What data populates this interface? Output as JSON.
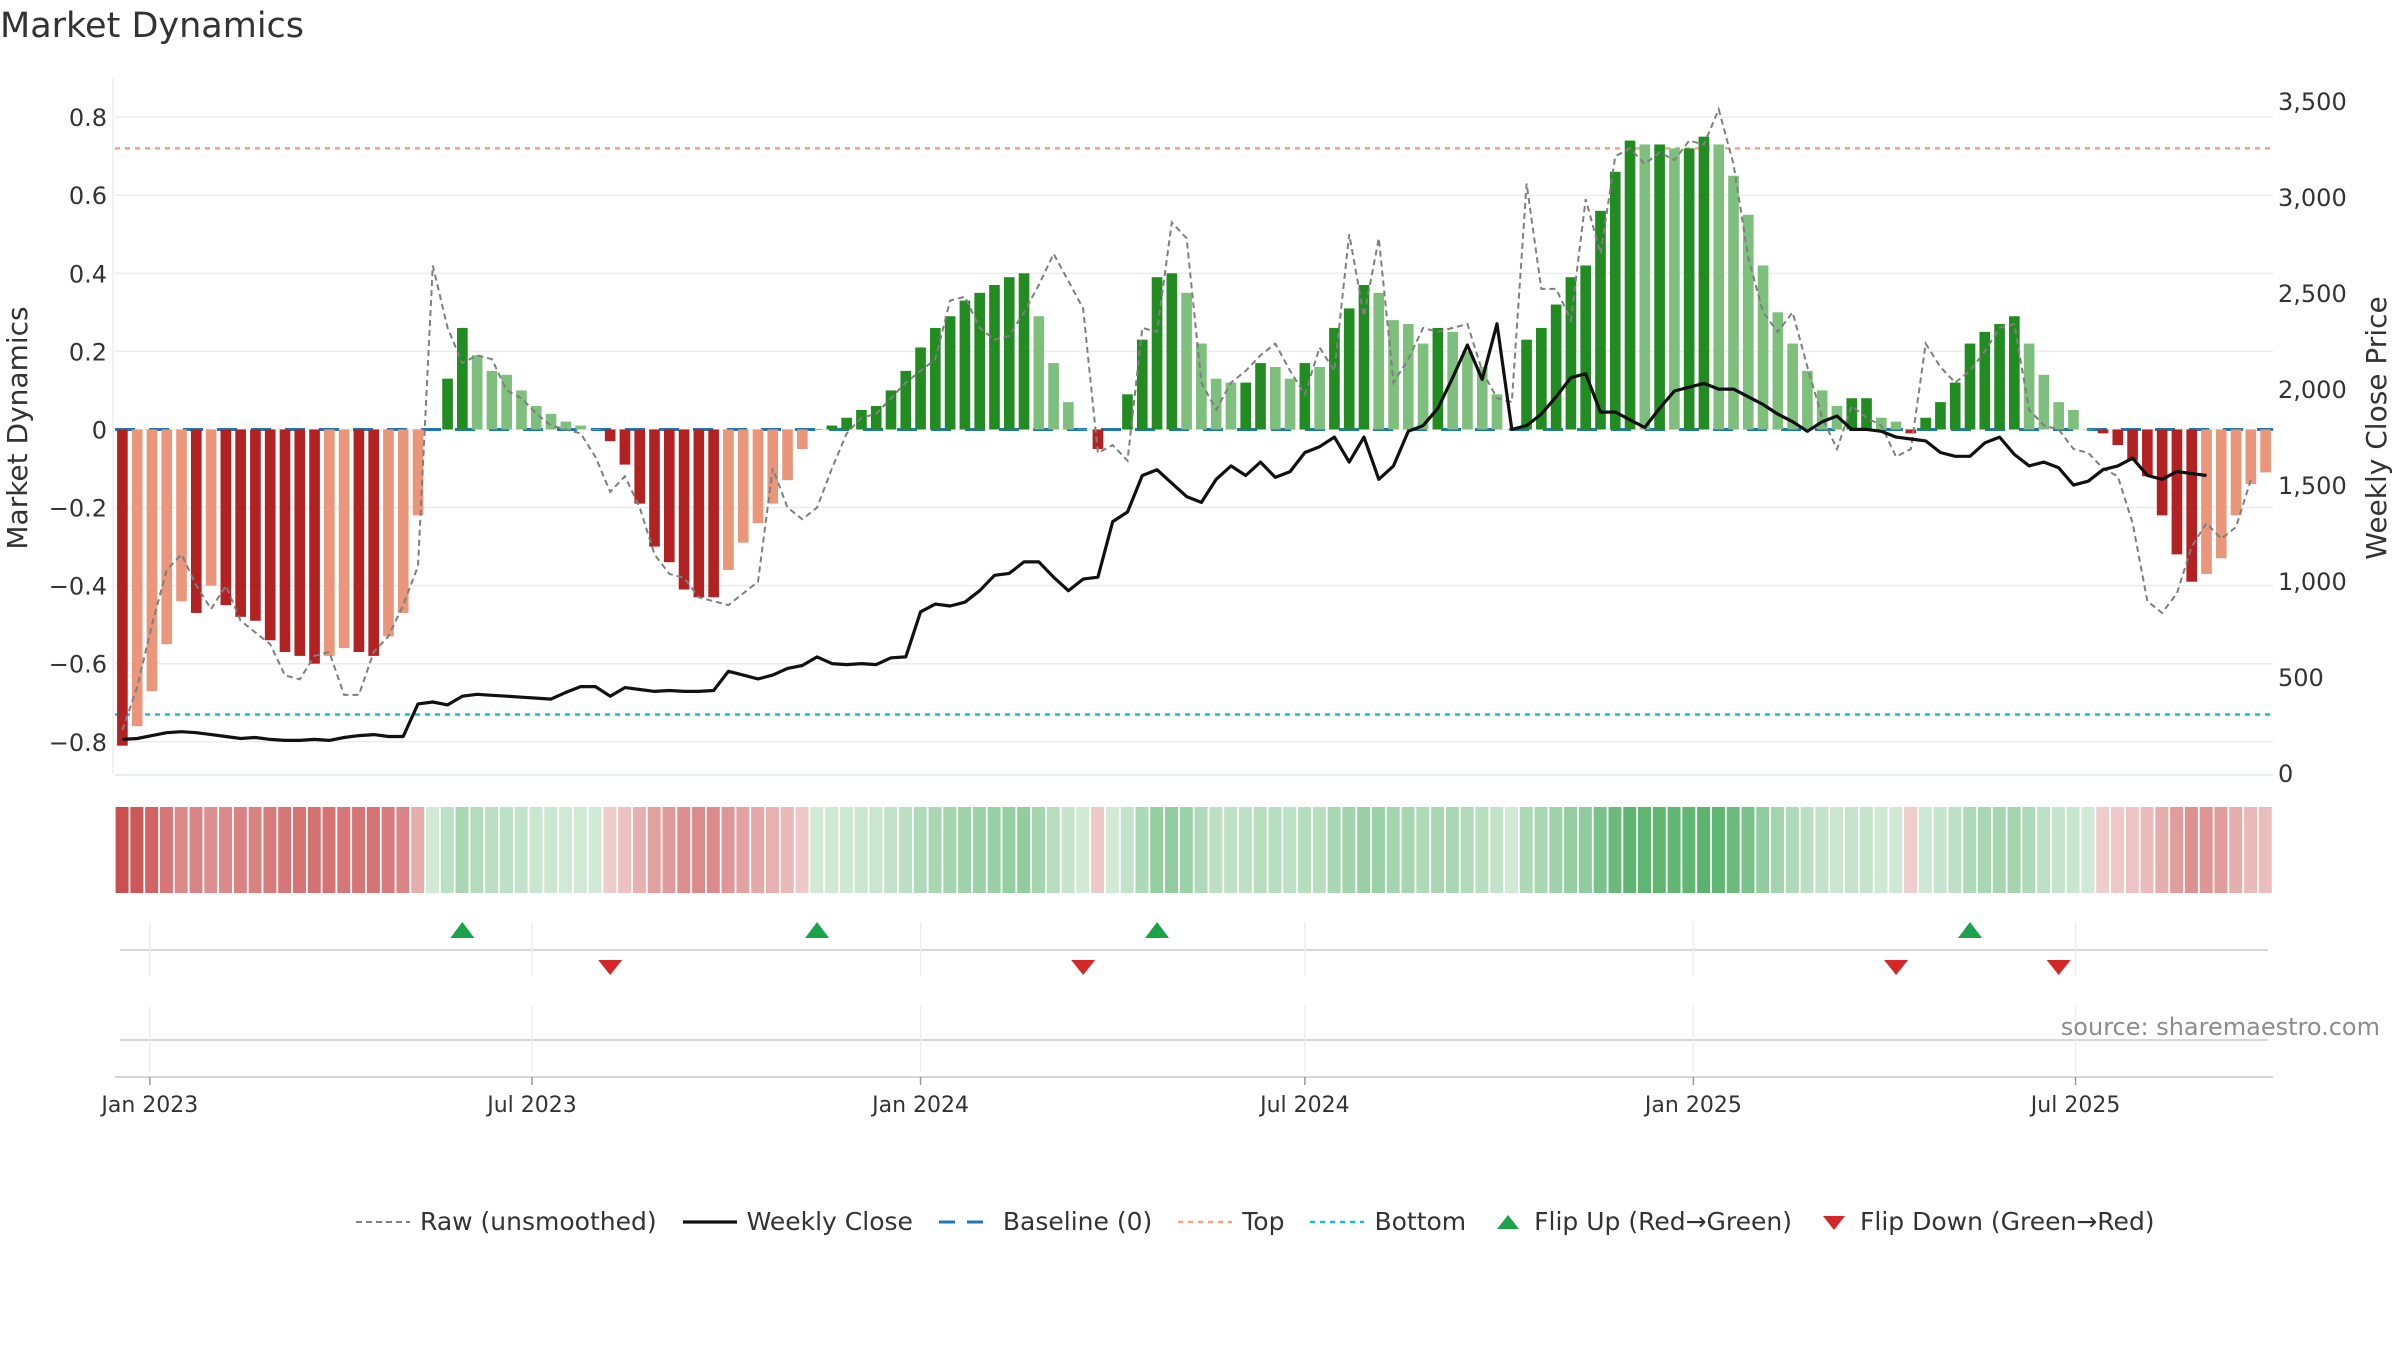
{
  "title": "Market Dynamics",
  "source": "source: sharemaestro.com",
  "chart_data": {
    "type": "bar",
    "x_axis": {
      "type": "date",
      "ticks": [
        "Jan 2023",
        "Jul 2023",
        "Jan 2024",
        "Jul 2024",
        "Jan 2025",
        "Jul 2025"
      ]
    },
    "left_axis": {
      "label": "Market Dynamics",
      "range": [
        -0.88,
        0.89
      ],
      "ticks": [
        "0.8",
        "0.6",
        "0.4",
        "0.2",
        "0",
        "−0.2",
        "−0.4",
        "−0.6",
        "−0.8"
      ]
    },
    "right_axis": {
      "label": "Weekly Close Price",
      "range": [
        0,
        3600
      ],
      "ticks": [
        "0",
        "500",
        "1,000",
        "1,500",
        "2,000",
        "2,500",
        "3,000",
        "3,500"
      ]
    },
    "grid": true,
    "reference_lines": {
      "baseline": 0,
      "top": 0.72,
      "bottom": -0.73
    },
    "first_week": "2022-12-19",
    "series": [
      {
        "name": "Market Dynamics (smoothed)",
        "kind": "bar",
        "axis": "left",
        "values": [
          -0.81,
          -0.76,
          -0.67,
          -0.55,
          -0.44,
          -0.47,
          -0.4,
          -0.45,
          -0.48,
          -0.49,
          -0.54,
          -0.57,
          -0.58,
          -0.6,
          -0.58,
          -0.56,
          -0.57,
          -0.58,
          -0.53,
          -0.47,
          -0.22,
          0.0,
          0.13,
          0.26,
          0.19,
          0.15,
          0.14,
          0.1,
          0.06,
          0.04,
          0.02,
          0.01,
          0.0,
          -0.03,
          -0.09,
          -0.19,
          -0.3,
          -0.34,
          -0.41,
          -0.43,
          -0.43,
          -0.36,
          -0.29,
          -0.24,
          -0.19,
          -0.13,
          -0.05,
          0.0,
          0.01,
          0.03,
          0.05,
          0.06,
          0.1,
          0.15,
          0.21,
          0.26,
          0.29,
          0.33,
          0.35,
          0.37,
          0.39,
          0.4,
          0.29,
          0.17,
          0.07,
          0.0,
          -0.05,
          0.0,
          0.09,
          0.23,
          0.39,
          0.4,
          0.35,
          0.22,
          0.13,
          0.12,
          0.12,
          0.17,
          0.16,
          0.13,
          0.17,
          0.16,
          0.26,
          0.31,
          0.37,
          0.35,
          0.28,
          0.27,
          0.22,
          0.26,
          0.25,
          0.2,
          0.16,
          0.09,
          0.0,
          0.23,
          0.26,
          0.32,
          0.39,
          0.42,
          0.56,
          0.66,
          0.74,
          0.73,
          0.73,
          0.72,
          0.72,
          0.75,
          0.73,
          0.65,
          0.55,
          0.42,
          0.3,
          0.22,
          0.15,
          0.1,
          0.06,
          0.08,
          0.08,
          0.03,
          0.02,
          -0.01,
          0.03,
          0.07,
          0.12,
          0.22,
          0.25,
          0.27,
          0.29,
          0.22,
          0.14,
          0.07,
          0.05,
          0.0,
          -0.01,
          -0.04,
          -0.08,
          -0.12,
          -0.22,
          -0.32,
          -0.39,
          -0.37,
          -0.33,
          -0.22,
          -0.14,
          -0.11
        ]
      },
      {
        "name": "Raw (unsmoothed)",
        "kind": "line",
        "axis": "left",
        "values": [
          -0.77,
          -0.66,
          -0.5,
          -0.36,
          -0.32,
          -0.4,
          -0.46,
          -0.4,
          -0.49,
          -0.52,
          -0.55,
          -0.63,
          -0.64,
          -0.58,
          -0.57,
          -0.68,
          -0.68,
          -0.57,
          -0.53,
          -0.45,
          -0.35,
          0.42,
          0.26,
          0.17,
          0.19,
          0.18,
          0.1,
          0.08,
          0.04,
          0.01,
          0.0,
          -0.01,
          -0.07,
          -0.16,
          -0.12,
          -0.2,
          -0.32,
          -0.37,
          -0.38,
          -0.43,
          -0.44,
          -0.45,
          -0.42,
          -0.39,
          -0.1,
          -0.2,
          -0.23,
          -0.2,
          -0.1,
          -0.01,
          0.03,
          0.04,
          0.08,
          0.12,
          0.15,
          0.18,
          0.33,
          0.34,
          0.26,
          0.23,
          0.24,
          0.3,
          0.37,
          0.45,
          0.38,
          0.31,
          -0.06,
          -0.04,
          -0.08,
          0.26,
          0.25,
          0.53,
          0.49,
          0.12,
          0.05,
          0.12,
          0.15,
          0.19,
          0.22,
          0.15,
          0.09,
          0.21,
          0.15,
          0.5,
          0.29,
          0.49,
          0.12,
          0.18,
          0.26,
          0.25,
          0.26,
          0.27,
          0.15,
          0.08,
          0.07,
          0.63,
          0.36,
          0.36,
          0.28,
          0.59,
          0.45,
          0.7,
          0.72,
          0.68,
          0.71,
          0.69,
          0.74,
          0.73,
          0.82,
          0.68,
          0.44,
          0.3,
          0.25,
          0.3,
          0.16,
          0.03,
          -0.05,
          0.06,
          0.03,
          0.01,
          -0.07,
          -0.05,
          0.22,
          0.16,
          0.12,
          0.15,
          0.2,
          0.26,
          0.27,
          0.05,
          0.01,
          0.0,
          -0.05,
          -0.06,
          -0.1,
          -0.12,
          -0.24,
          -0.44,
          -0.47,
          -0.42,
          -0.3,
          -0.24,
          -0.28,
          -0.25,
          -0.13
        ]
      },
      {
        "name": "Weekly Close",
        "kind": "line",
        "axis": "right",
        "values": [
          175,
          180,
          195,
          210,
          215,
          210,
          200,
          190,
          180,
          185,
          175,
          170,
          170,
          175,
          170,
          185,
          195,
          200,
          190,
          190,
          360,
          370,
          355,
          400,
          410,
          405,
          400,
          395,
          390,
          385,
          420,
          450,
          450,
          400,
          445,
          435,
          425,
          430,
          425,
          425,
          430,
          530,
          510,
          490,
          510,
          545,
          560,
          605,
          570,
          565,
          570,
          565,
          600,
          605,
          840,
          880,
          870,
          890,
          950,
          1030,
          1040,
          1100,
          1100,
          1020,
          950,
          1010,
          1020,
          1310,
          1360,
          1550,
          1580,
          1510,
          1440,
          1410,
          1530,
          1600,
          1550,
          1620,
          1540,
          1570,
          1670,
          1700,
          1750,
          1620,
          1750,
          1530,
          1600,
          1780,
          1810,
          1900,
          2060,
          2230,
          2050,
          2340,
          1790,
          1810,
          1870,
          1960,
          2060,
          2080,
          1880,
          1880,
          1840,
          1800,
          1900,
          1990,
          2010,
          2030,
          2000,
          2000,
          1960,
          1920,
          1870,
          1830,
          1780,
          1830,
          1860,
          1790,
          1790,
          1780,
          1750,
          1740,
          1730,
          1670,
          1650,
          1650,
          1720,
          1750,
          1660,
          1600,
          1620,
          1590,
          1500,
          1520,
          1580,
          1600,
          1640,
          1550,
          1530,
          1570,
          1560,
          1550
        ]
      },
      {
        "name": "Baseline (0)",
        "kind": "reference",
        "value": 0
      },
      {
        "name": "Top",
        "kind": "reference",
        "value": 0.72
      },
      {
        "name": "Bottom",
        "kind": "reference",
        "value": -0.73
      },
      {
        "name": "Flip Up (Red→Green)",
        "kind": "marker",
        "weeks": [
          23,
          47,
          70,
          125
        ]
      },
      {
        "name": "Flip Down (Green→Red)",
        "kind": "marker",
        "weeks": [
          33,
          65,
          120,
          131
        ]
      }
    ],
    "colors": {
      "pos_dark": "#228b22",
      "pos_light": "#7ebf7e",
      "neg_dark": "#b22222",
      "neg_light": "#e9967a",
      "raw": "#7f7f7f",
      "close": "#111111",
      "baseline": "#1f77b4",
      "top": "#f4a582",
      "bottom": "#17becf",
      "flip_up": "#1aa34a",
      "flip_down": "#d62728"
    }
  },
  "legend": [
    {
      "key": "raw",
      "label": "Raw (unsmoothed)"
    },
    {
      "key": "close",
      "label": "Weekly Close"
    },
    {
      "key": "baseline",
      "label": "Baseline (0)"
    },
    {
      "key": "top",
      "label": "Top"
    },
    {
      "key": "bottom",
      "label": "Bottom"
    },
    {
      "key": "flip_up",
      "label": "Flip Up (Red→Green)"
    },
    {
      "key": "flip_down",
      "label": "Flip Down (Green→Red)"
    }
  ]
}
